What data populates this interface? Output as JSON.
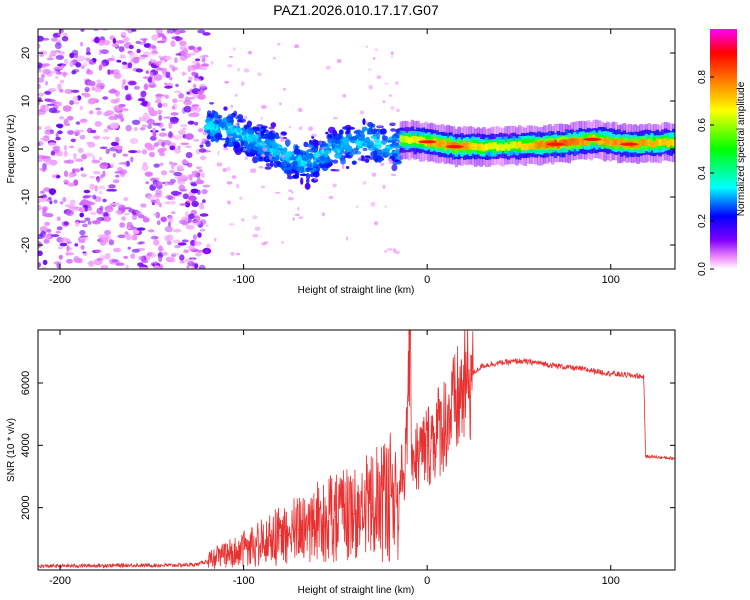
{
  "figure_title": "PAZ1.2026.010.17.17.G07",
  "chart_data": [
    {
      "type": "heatmap",
      "panel": "spectrogram",
      "xlabel": "Height of straight line (km)",
      "ylabel": "Frequency (Hz)",
      "xlim": [
        -212,
        135
      ],
      "ylim": [
        -25,
        25
      ],
      "xticks": [
        -200,
        -100,
        0,
        100
      ],
      "yticks": [
        -20,
        -10,
        0,
        10,
        20
      ],
      "colorbar": {
        "label": "Normalized spectral amplitude",
        "range": [
          0,
          1
        ],
        "ticks": [
          "0.0",
          "0.2",
          "0.4",
          "0.6",
          "0.8"
        ],
        "tick_values": [
          0.0,
          0.2,
          0.4,
          0.6,
          0.8
        ],
        "colormap": [
          "#ffffff",
          "#ee88ff",
          "#8000ff",
          "#0000ff",
          "#00ffff",
          "#00ff00",
          "#ffff00",
          "#ff8000",
          "#ff0000",
          "#ff00ff"
        ]
      },
      "regions": [
        {
          "name": "noise",
          "x_range": [
            -212,
            -120
          ],
          "freq_range": [
            -25,
            25
          ],
          "amplitude": 0.08
        },
        {
          "name": "signal-scatter",
          "x_range": [
            -120,
            -15
          ],
          "freq_center": [
            5,
            3,
            0,
            -3,
            0,
            2,
            0
          ],
          "freq_width": 6,
          "amplitude": 0.3
        },
        {
          "name": "signal-line",
          "x_range": [
            -15,
            135
          ],
          "freq_center": 1,
          "freq_width": 2,
          "amplitude": 0.6
        }
      ],
      "ridge": [
        {
          "x": -15,
          "f": 2,
          "amp": 0.6
        },
        {
          "x": 0,
          "f": 1.5,
          "amp": 0.7
        },
        {
          "x": 15,
          "f": 0.5,
          "amp": 0.75
        },
        {
          "x": 40,
          "f": 0.5,
          "amp": 0.6
        },
        {
          "x": 70,
          "f": 1,
          "amp": 0.8
        },
        {
          "x": 90,
          "f": 2,
          "amp": 0.7
        },
        {
          "x": 110,
          "f": 1,
          "amp": 0.75
        },
        {
          "x": 135,
          "f": 1.5,
          "amp": 0.65
        }
      ]
    },
    {
      "type": "line",
      "panel": "snr",
      "xlabel": "Height of straight line (km)",
      "ylabel": "SNR (10 * v/v)",
      "xlim": [
        -212,
        135
      ],
      "ylim": [
        0,
        7700
      ],
      "xticks": [
        -200,
        -100,
        0,
        100
      ],
      "yticks": [
        2000,
        4000,
        6000
      ],
      "color": "#e83030",
      "series": [
        {
          "name": "SNR",
          "points": [
            [
              -212,
              120
            ],
            [
              -200,
              130
            ],
            [
              -180,
              140
            ],
            [
              -160,
              150
            ],
            [
              -140,
              150
            ],
            [
              -125,
              180
            ],
            [
              -115,
              400
            ],
            [
              -100,
              700
            ],
            [
              -90,
              900
            ],
            [
              -80,
              1100
            ],
            [
              -70,
              1300
            ],
            [
              -60,
              1500
            ],
            [
              -50,
              1700
            ],
            [
              -40,
              1800
            ],
            [
              -30,
              2000
            ],
            [
              -20,
              2400
            ],
            [
              -15,
              2800
            ],
            [
              -12,
              3400
            ],
            [
              -11,
              4200
            ],
            [
              -10,
              7600
            ],
            [
              -8,
              3800
            ],
            [
              -5,
              3600
            ],
            [
              0,
              4000
            ],
            [
              5,
              4400
            ],
            [
              10,
              4800
            ],
            [
              15,
              5200
            ],
            [
              20,
              5800
            ],
            [
              25,
              6300
            ],
            [
              30,
              6550
            ],
            [
              40,
              6650
            ],
            [
              50,
              6700
            ],
            [
              60,
              6650
            ],
            [
              70,
              6550
            ],
            [
              80,
              6480
            ],
            [
              90,
              6400
            ],
            [
              100,
              6300
            ],
            [
              110,
              6250
            ],
            [
              118,
              6200
            ],
            [
              119,
              3650
            ],
            [
              125,
              3620
            ],
            [
              135,
              3580
            ]
          ]
        }
      ]
    }
  ]
}
